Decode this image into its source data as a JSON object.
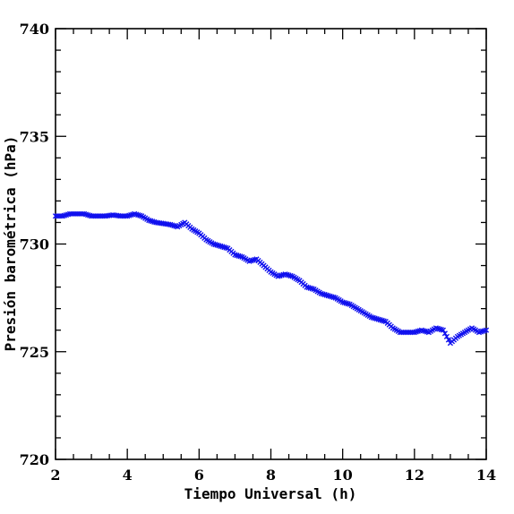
{
  "chart_data": {
    "type": "scatter",
    "title": "",
    "xlabel": "Tiempo Universal (h)",
    "ylabel": "Presión barométrica (hPa)",
    "xlim": [
      2,
      14
    ],
    "ylim": [
      720,
      740
    ],
    "xticks": [
      2,
      4,
      6,
      8,
      10,
      12,
      14
    ],
    "xtick_labels": [
      "2",
      "4",
      "6",
      "8",
      "10",
      "12",
      "14"
    ],
    "yticks": [
      720,
      725,
      730,
      735,
      740
    ],
    "ytick_labels": [
      "720",
      "725",
      "730",
      "735",
      "740"
    ],
    "grid": false,
    "marker": "x",
    "colors": {
      "points": "#1010ee"
    },
    "series": [
      {
        "x": [
          2.0,
          2.2,
          2.4,
          2.6,
          2.8,
          3.0,
          3.2,
          3.4,
          3.6,
          3.8,
          4.0,
          4.2,
          4.4,
          4.6,
          4.8,
          5.0,
          5.2,
          5.4,
          5.6,
          5.8,
          6.0,
          6.2,
          6.4,
          6.6,
          6.8,
          7.0,
          7.2,
          7.4,
          7.6,
          7.8,
          8.0,
          8.2,
          8.4,
          8.6,
          8.8,
          9.0,
          9.2,
          9.4,
          9.6,
          9.8,
          10.0,
          10.2,
          10.4,
          10.6,
          10.8,
          11.0,
          11.2,
          11.4,
          11.6,
          11.8,
          12.0,
          12.2,
          12.4,
          12.6,
          12.8,
          13.0,
          13.2,
          13.4,
          13.6,
          13.8,
          14.0
        ],
        "y": [
          731.3,
          731.3,
          731.4,
          731.4,
          731.4,
          731.3,
          731.3,
          731.3,
          731.35,
          731.3,
          731.3,
          731.4,
          731.3,
          731.1,
          731.0,
          730.95,
          730.9,
          730.8,
          731.0,
          730.7,
          730.5,
          730.2,
          730.0,
          729.9,
          729.8,
          729.5,
          729.4,
          729.2,
          729.3,
          729.0,
          728.7,
          728.5,
          728.6,
          728.5,
          728.3,
          728.0,
          727.9,
          727.7,
          727.6,
          727.5,
          727.3,
          727.2,
          727.0,
          726.8,
          726.6,
          726.5,
          726.4,
          726.1,
          725.9,
          725.9,
          725.9,
          726.0,
          725.9,
          726.1,
          726.0,
          725.4,
          725.7,
          725.9,
          726.1,
          725.9,
          726.0
        ]
      }
    ]
  }
}
